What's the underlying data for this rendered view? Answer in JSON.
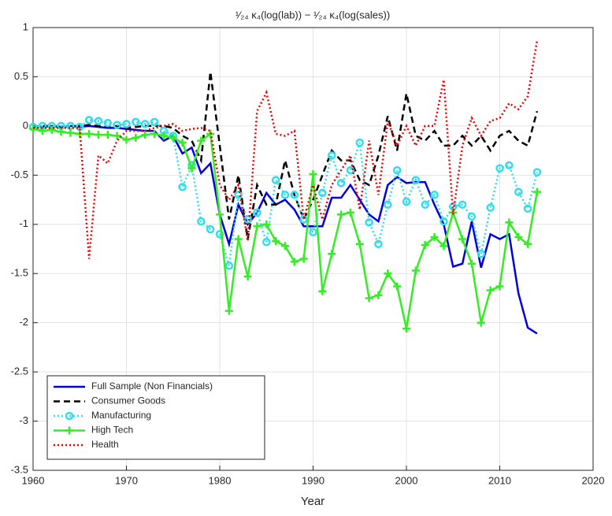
{
  "chart_data": {
    "type": "line",
    "title": "¹⁄₂₄ κ₄(log(lab)) − ¹⁄₂₄ κ₄(log(sales))",
    "xlabel": "Year",
    "x": [
      1960,
      1961,
      1962,
      1963,
      1964,
      1965,
      1966,
      1967,
      1968,
      1969,
      1970,
      1971,
      1972,
      1973,
      1974,
      1975,
      1976,
      1977,
      1978,
      1979,
      1980,
      1981,
      1982,
      1983,
      1984,
      1985,
      1986,
      1987,
      1988,
      1989,
      1990,
      1991,
      1992,
      1993,
      1994,
      1995,
      1996,
      1997,
      1998,
      1999,
      2000,
      2001,
      2002,
      2003,
      2004,
      2005,
      2006,
      2007,
      2008,
      2009,
      2010,
      2011,
      2012,
      2013,
      2014
    ],
    "xlim": [
      1960,
      2020
    ],
    "xticks": [
      1960,
      1970,
      1980,
      1990,
      2000,
      2010,
      2020
    ],
    "ylim": [
      -3.5,
      1
    ],
    "yticks": [
      -3.5,
      -3,
      -2.5,
      -2,
      -1.5,
      -1,
      -0.5,
      0,
      0.5,
      1
    ],
    "grid": true,
    "legend": "lower left",
    "series": [
      {
        "name": "Full Sample (Non Financials)",
        "color": "#0000dd",
        "style": "solid",
        "marker": "none",
        "values": [
          0,
          -0.01,
          0,
          -0.01,
          0,
          -0.01,
          0,
          -0.01,
          -0.02,
          -0.02,
          -0.03,
          -0.04,
          -0.05,
          -0.05,
          -0.15,
          -0.1,
          -0.28,
          -0.22,
          -0.48,
          -0.38,
          -0.9,
          -1.2,
          -0.8,
          -1.0,
          -0.88,
          -0.68,
          -0.8,
          -0.75,
          -0.85,
          -1.02,
          -1.02,
          -1.02,
          -0.73,
          -0.73,
          -0.6,
          -0.75,
          -0.9,
          -0.97,
          -0.6,
          -0.52,
          -0.58,
          -0.57,
          -0.57,
          -0.8,
          -1.0,
          -1.43,
          -1.4,
          -0.97,
          -1.44,
          -1.1,
          -1.15,
          -1.1,
          -1.7,
          -2.05,
          -2.11
        ]
      },
      {
        "name": "Consumer Goods",
        "color": "#000000",
        "style": "dashed",
        "marker": "none",
        "values": [
          -0.01,
          0,
          0,
          -0.01,
          0,
          0,
          0.01,
          0,
          -0.01,
          0,
          -0.02,
          -0.01,
          0,
          0,
          0,
          -0.02,
          -0.1,
          -0.15,
          -0.35,
          0.55,
          -0.2,
          -0.95,
          -0.5,
          -1.15,
          -0.6,
          -0.8,
          -0.8,
          -0.35,
          -0.7,
          -0.95,
          -0.75,
          -0.5,
          -0.25,
          -0.35,
          -0.35,
          -0.55,
          -0.6,
          -0.3,
          0.1,
          -0.25,
          0.33,
          -0.1,
          -0.15,
          -0.05,
          -0.2,
          -0.2,
          -0.1,
          -0.2,
          -0.1,
          -0.25,
          -0.1,
          -0.05,
          -0.15,
          -0.2,
          0.15
        ]
      },
      {
        "name": "Manufacturing",
        "color": "#33ddee",
        "style": "dotted",
        "marker": "circle",
        "values": [
          -0.01,
          0,
          0,
          0,
          0,
          -0.01,
          0.06,
          0.05,
          0.03,
          0.01,
          0.02,
          0.04,
          0.02,
          0.04,
          -0.05,
          -0.1,
          -0.62,
          -0.4,
          -0.97,
          -1.05,
          -1.1,
          -1.42,
          -0.7,
          -0.95,
          -0.88,
          -1.18,
          -0.55,
          -0.7,
          -0.7,
          -0.95,
          -1.08,
          -0.68,
          -0.3,
          -0.58,
          -0.45,
          -0.17,
          -0.98,
          -1.2,
          -0.8,
          -0.45,
          -0.77,
          -0.55,
          -0.8,
          -0.7,
          -0.97,
          -0.82,
          -0.8,
          -0.92,
          -1.3,
          -0.83,
          -0.43,
          -0.4,
          -0.67,
          -0.84,
          -0.47
        ]
      },
      {
        "name": "High Tech",
        "color": "#33ee22",
        "style": "solid",
        "marker": "plus",
        "values": [
          -0.03,
          -0.05,
          -0.04,
          -0.06,
          -0.07,
          -0.08,
          -0.08,
          -0.09,
          -0.09,
          -0.1,
          -0.14,
          -0.12,
          -0.09,
          -0.08,
          -0.1,
          -0.12,
          -0.17,
          -0.43,
          -0.15,
          -0.08,
          -0.9,
          -1.88,
          -1.15,
          -1.53,
          -1.02,
          -1.0,
          -1.17,
          -1.22,
          -1.38,
          -1.35,
          -0.49,
          -1.68,
          -1.3,
          -0.9,
          -0.88,
          -1.2,
          -1.75,
          -1.72,
          -1.5,
          -1.63,
          -2.06,
          -1.47,
          -1.21,
          -1.13,
          -1.22,
          -0.88,
          -1.15,
          -1.4,
          -2.0,
          -1.67,
          -1.63,
          -0.98,
          -1.13,
          -1.2,
          -0.67
        ]
      },
      {
        "name": "Health",
        "color": "#ee0000",
        "style": "dotted",
        "marker": "none",
        "values": [
          -0.02,
          -0.02,
          -0.02,
          -0.02,
          -0.02,
          -0.02,
          -1.35,
          -0.3,
          -0.38,
          -0.15,
          -0.05,
          -0.05,
          -0.05,
          -0.02,
          0,
          0.02,
          -0.05,
          -0.03,
          -0.02,
          -0.05,
          -0.6,
          -0.75,
          -0.6,
          -1.17,
          0.15,
          0.34,
          -0.08,
          -0.1,
          -0.05,
          -0.95,
          -0.6,
          -0.95,
          -0.6,
          -0.45,
          -0.3,
          -0.85,
          -0.15,
          -0.7,
          0.05,
          -0.2,
          0,
          -0.2,
          0,
          0,
          0.47,
          -0.9,
          -0.2,
          0.08,
          -0.1,
          0.05,
          0.08,
          0.23,
          0.17,
          0.3,
          0.87
        ]
      }
    ]
  }
}
